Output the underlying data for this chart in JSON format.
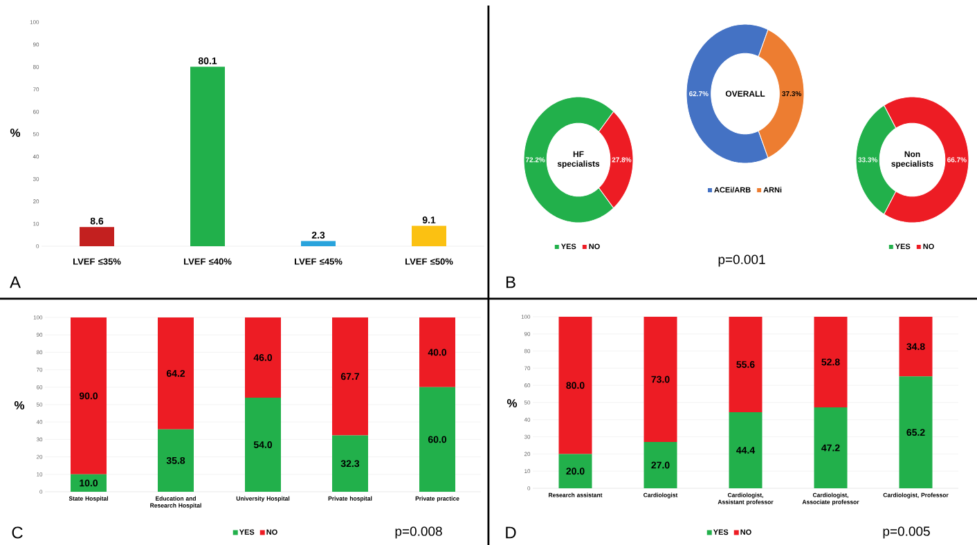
{
  "chart_data": [
    {
      "type": "bar",
      "categories": [
        "LVEF ≤35%",
        "LVEF ≤40%",
        "LVEF ≤45%",
        "LVEF ≤50%"
      ],
      "values": [
        8.6,
        80.1,
        2.3,
        9.1
      ],
      "colors": [
        "#c3201f",
        "#21b04b",
        "#29a3dc",
        "#fbc112"
      ],
      "ylabel": "%",
      "ylim": [
        0,
        100
      ],
      "yticks": [
        0,
        10,
        20,
        30,
        40,
        50,
        60,
        70,
        80,
        90,
        100
      ],
      "data_labels": true,
      "annotations": [
        "A"
      ]
    },
    {
      "type": "donut",
      "title": "HF specialists",
      "categories": [
        "YES",
        "NO"
      ],
      "values": [
        72.2,
        27.8
      ],
      "colors": [
        "#22b04b",
        "#ed1c24"
      ],
      "value_labels": [
        "72.2%",
        "27.8%"
      ],
      "legend": "bottom"
    },
    {
      "type": "donut",
      "title": "OVERALL",
      "categories": [
        "ACEi/ARB",
        "ARNi"
      ],
      "values": [
        62.7,
        37.3
      ],
      "colors": [
        "#4472c4",
        "#ed7d31"
      ],
      "value_labels": [
        "62.7%",
        "37.3%"
      ],
      "legend": "bottom",
      "annotations": [
        "B",
        "p=0.001"
      ]
    },
    {
      "type": "donut",
      "title": "Non specialists",
      "categories": [
        "YES",
        "NO"
      ],
      "values": [
        33.3,
        66.7
      ],
      "colors": [
        "#22b04b",
        "#ed1c24"
      ],
      "value_labels": [
        "33.3%",
        "66.7%"
      ],
      "legend": "bottom"
    },
    {
      "type": "bar",
      "stacked": true,
      "categories": [
        "State Hospital",
        "Education and Research Hospital",
        "University Hospital",
        "Private hospital",
        "Private practice"
      ],
      "series": [
        {
          "name": "YES",
          "color": "#22b04b",
          "values": [
            10.0,
            35.8,
            54.0,
            32.3,
            60.0
          ],
          "value_labels": [
            "10.0",
            "35.8",
            "54.0",
            "32.3",
            "60.0"
          ]
        },
        {
          "name": "NO",
          "color": "#ed1c24",
          "values": [
            90.0,
            64.2,
            46.0,
            67.7,
            40.0
          ],
          "value_labels": [
            "90.0",
            "64.2",
            "46.0",
            "67.7",
            "40.0"
          ]
        }
      ],
      "ylabel": "%",
      "ylim": [
        0,
        100
      ],
      "yticks": [
        0,
        10,
        20,
        30,
        40,
        50,
        60,
        70,
        80,
        90,
        100
      ],
      "grid": "y",
      "legend": "bottom",
      "annotations": [
        "C",
        "p=0.008"
      ]
    },
    {
      "type": "bar",
      "stacked": true,
      "categories": [
        "Research assistant",
        "Cardiologist",
        "Cardiologist, Assistant professor",
        "Cardiologist, Associate professor",
        "Cardiologist, Professor"
      ],
      "series": [
        {
          "name": "YES",
          "color": "#22b04b",
          "values": [
            20.0,
            27.0,
            44.4,
            47.2,
            65.2
          ],
          "value_labels": [
            "20.0",
            "27.0",
            "44.4",
            "47.2",
            "65.2"
          ]
        },
        {
          "name": "NO",
          "color": "#ed1c24",
          "values": [
            80.0,
            73.0,
            55.6,
            52.8,
            34.8
          ],
          "value_labels": [
            "80.0",
            "73.0",
            "55.6",
            "52.8",
            "34.8"
          ]
        }
      ],
      "ylabel": "%",
      "ylim": [
        0,
        100
      ],
      "yticks": [
        0,
        10,
        20,
        30,
        40,
        50,
        60,
        70,
        80,
        90,
        100
      ],
      "grid": "y",
      "legend": "bottom",
      "annotations": [
        "D",
        "p=0.005"
      ]
    }
  ]
}
